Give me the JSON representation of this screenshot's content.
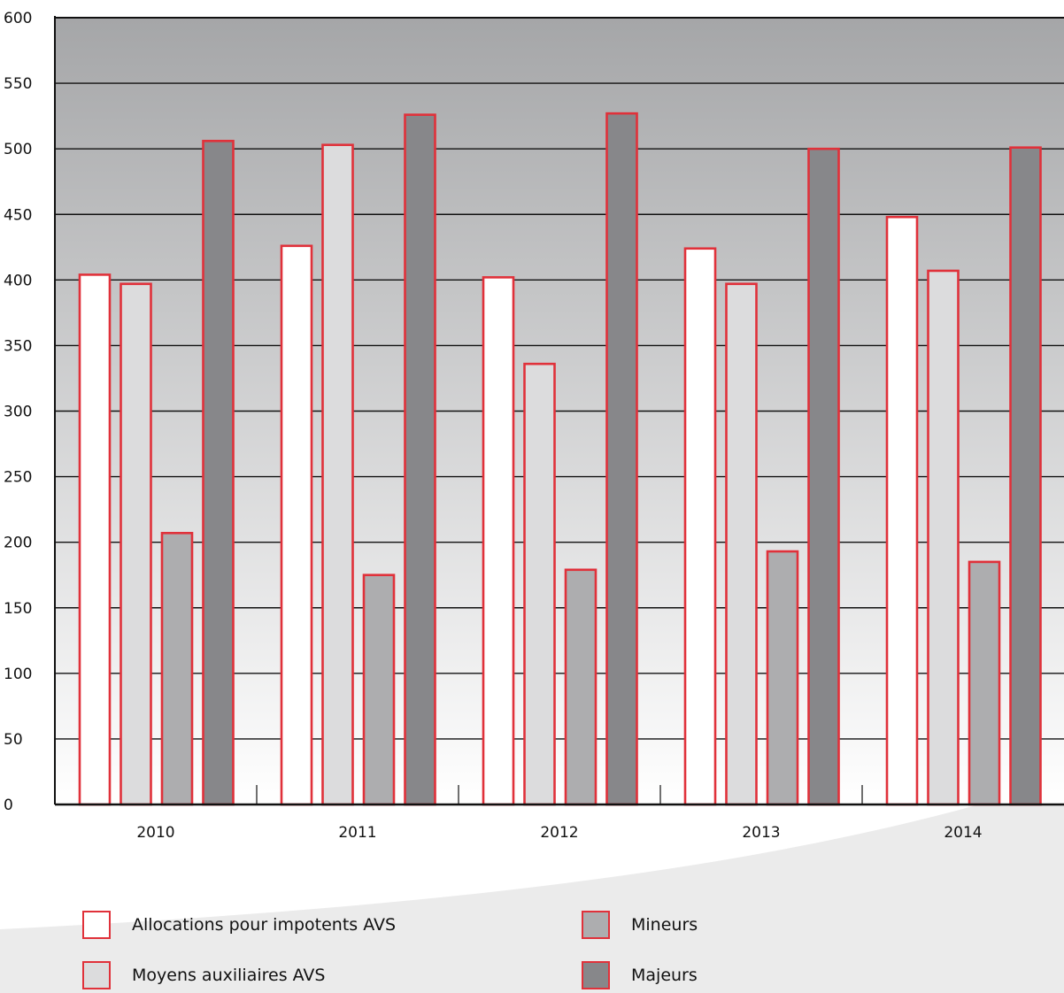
{
  "chart_data": {
    "type": "bar",
    "categories": [
      "2010",
      "2011",
      "2012",
      "2013",
      "2014"
    ],
    "series": [
      {
        "name": "Allocations pour impotents AVS",
        "values": [
          404,
          426,
          402,
          424,
          448
        ],
        "color": "#ffffff"
      },
      {
        "name": "Moyens auxiliaires AVS",
        "values": [
          397,
          503,
          336,
          397,
          407
        ],
        "color": "#dcdcdd"
      },
      {
        "name": "Mineurs",
        "values": [
          207,
          175,
          179,
          193,
          185
        ],
        "color": "#adadaf"
      },
      {
        "name": "Majeurs",
        "values": [
          506,
          526,
          527,
          500,
          501
        ],
        "color": "#87878a"
      }
    ],
    "ylim": [
      0,
      600
    ],
    "yticks": [
      0,
      50,
      100,
      150,
      200,
      250,
      300,
      350,
      400,
      450,
      500,
      550,
      600
    ],
    "grid": true,
    "legend_position": "bottom",
    "bar_border_color": "#e0313a"
  }
}
